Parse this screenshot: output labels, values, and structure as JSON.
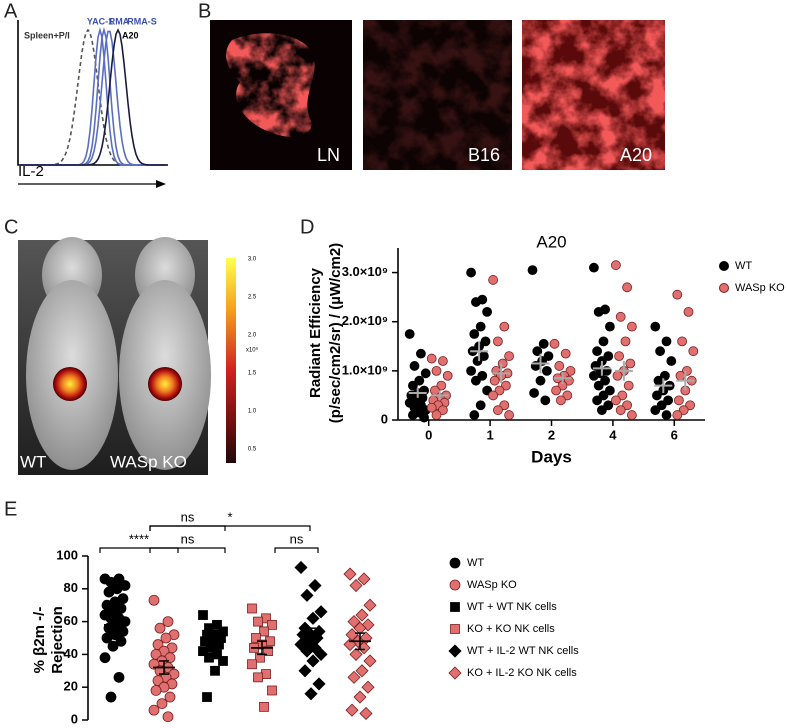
{
  "panel_labels": [
    "A",
    "B",
    "C",
    "D",
    "E"
  ],
  "panel_a": {
    "lines": [
      "Spleen+P/I",
      "YAC-1",
      "RMA",
      "RMA-S",
      "A20"
    ],
    "xlabel": "IL-2"
  },
  "panel_b": {
    "images": [
      "LN",
      "B16",
      "A20"
    ]
  },
  "panel_c": {
    "mice": [
      "WT",
      "WASp KO"
    ],
    "colorbar_ticks": [
      "3.0",
      "2.5",
      "2.0",
      "1.5",
      "1.0",
      "0.5"
    ],
    "colorbar_unit": "x10⁹"
  },
  "chart_data": [
    {
      "type": "scatter",
      "title": "A20",
      "xlabel": "Days",
      "ylabel": [
        "Radiant Efficiency",
        "(p/sec/cm2/sr) / (µW/cm2)"
      ],
      "categories": [
        "0",
        "1",
        "2",
        "4",
        "6"
      ],
      "ylim": [
        0,
        3500000000.0
      ],
      "yticks": [
        0,
        {
          "value": 1000000000.0,
          "label": "1.0×10⁹"
        },
        {
          "value": 2000000000.0,
          "label": "2.0×10⁹"
        },
        {
          "value": 3000000000.0,
          "label": "3.0×10⁹"
        }
      ],
      "series": [
        {
          "name": "WT",
          "color": "#000000",
          "values": [
            [
              1750000000.0,
              1350000000.0,
              1100000000.0,
              950000000.0,
              800000000.0,
              700000000.0,
              600000000.0,
              550000000.0,
              500000000.0,
              450000000.0,
              400000000.0,
              350000000.0,
              300000000.0,
              250000000.0,
              200000000.0,
              150000000.0,
              100000000.0,
              50000000.0
            ],
            [
              3000000000.0,
              2450000000.0,
              2400000000.0,
              2200000000.0,
              1900000000.0,
              1750000000.0,
              1600000000.0,
              1500000000.0,
              1400000000.0,
              1300000000.0,
              1200000000.0,
              1000000000.0,
              900000000.0,
              800000000.0,
              600000000.0,
              300000000.0,
              100000000.0
            ],
            [
              3050000000.0,
              1550000000.0,
              1400000000.0,
              1300000000.0,
              1200000000.0,
              1100000000.0,
              1000000000.0,
              800000000.0,
              550000000.0,
              400000000.0
            ],
            [
              3100000000.0,
              2250000000.0,
              2200000000.0,
              1900000000.0,
              1600000000.0,
              1400000000.0,
              1300000000.0,
              1200000000.0,
              1100000000.0,
              1000000000.0,
              950000000.0,
              900000000.0,
              800000000.0,
              700000000.0,
              600000000.0,
              500000000.0,
              400000000.0,
              300000000.0,
              200000000.0
            ],
            [
              1900000000.0,
              1600000000.0,
              1400000000.0,
              1200000000.0,
              900000000.0,
              800000000.0,
              700000000.0,
              600000000.0,
              500000000.0,
              400000000.0,
              300000000.0,
              200000000.0,
              100000000.0
            ]
          ],
          "means": [
            550000000.0,
            1400000000.0,
            1150000000.0,
            1050000000.0,
            700000000.0
          ],
          "sems": [
            100000000.0,
            200000000.0,
            200000000.0,
            150000000.0,
            150000000.0
          ]
        },
        {
          "name": "WASp KO",
          "color": "#e07070",
          "values": [
            [
              1250000000.0,
              1200000000.0,
              1000000000.0,
              900000000.0,
              700000000.0,
              600000000.0,
              500000000.0,
              450000000.0,
              400000000.0,
              350000000.0,
              300000000.0,
              250000000.0,
              200000000.0,
              100000000.0
            ],
            [
              2850000000.0,
              1900000000.0,
              1600000000.0,
              1300000000.0,
              1150000000.0,
              1000000000.0,
              950000000.0,
              900000000.0,
              800000000.0,
              700000000.0,
              600000000.0,
              500000000.0,
              300000000.0,
              200000000.0,
              100000000.0
            ],
            [
              1550000000.0,
              1350000000.0,
              1100000000.0,
              1000000000.0,
              900000000.0,
              850000000.0,
              800000000.0,
              700000000.0,
              600000000.0,
              500000000.0,
              400000000.0
            ],
            [
              3150000000.0,
              2700000000.0,
              2100000000.0,
              1900000000.0,
              1600000000.0,
              1300000000.0,
              1150000000.0,
              1000000000.0,
              900000000.0,
              700000000.0,
              500000000.0,
              400000000.0,
              300000000.0,
              200000000.0,
              100000000.0
            ],
            [
              2550000000.0,
              2200000000.0,
              1600000000.0,
              1400000000.0,
              1000000000.0,
              900000000.0,
              800000000.0,
              600000000.0,
              400000000.0,
              300000000.0,
              200000000.0,
              100000000.0
            ]
          ],
          "means": [
            500000000.0,
            950000000.0,
            850000000.0,
            1000000000.0,
            800000000.0
          ],
          "sems": [
            100000000.0,
            200000000.0,
            120000000.0,
            200000000.0,
            200000000.0
          ]
        }
      ]
    },
    {
      "type": "dot",
      "ylabel": [
        "% β2m -/-",
        "Rejection"
      ],
      "ylim": [
        0,
        100
      ],
      "yticks": [
        0,
        20,
        40,
        60,
        80,
        100
      ],
      "annotations": [
        "****",
        "ns",
        "ns",
        "ns",
        "*"
      ],
      "series": [
        {
          "name": "WT",
          "color": "#000000",
          "marker": "circle",
          "values": [
            86,
            86,
            84,
            82,
            80,
            78,
            74,
            72,
            70,
            68,
            66,
            64,
            62,
            62,
            60,
            58,
            56,
            54,
            52,
            50,
            48,
            45,
            38,
            26,
            14
          ],
          "mean": 58,
          "sem": 4
        },
        {
          "name": "WASp KO",
          "color": "#e07070",
          "marker": "circle",
          "values": [
            73,
            60,
            56,
            52,
            50,
            46,
            44,
            42,
            40,
            38,
            36,
            34,
            32,
            30,
            28,
            26,
            24,
            22,
            20,
            18,
            14,
            10,
            6,
            2
          ],
          "mean": 32,
          "sem": 4
        },
        {
          "name": "WT + WT NK cells",
          "color": "#000000",
          "marker": "square",
          "values": [
            64,
            58,
            56,
            54,
            52,
            52,
            50,
            48,
            48,
            46,
            44,
            42,
            40,
            38,
            36,
            30,
            14
          ],
          "mean": 48,
          "sem": 3
        },
        {
          "name": "KO + KO NK cells",
          "color": "#e07070",
          "marker": "square",
          "values": [
            68,
            62,
            60,
            58,
            54,
            50,
            48,
            46,
            44,
            42,
            38,
            34,
            28,
            26,
            18,
            8
          ],
          "mean": 44,
          "sem": 4
        },
        {
          "name": "WT + IL-2 WT NK cells",
          "color": "#000000",
          "marker": "diamond",
          "values": [
            93,
            82,
            76,
            66,
            62,
            56,
            54,
            52,
            52,
            50,
            48,
            46,
            44,
            42,
            40,
            36,
            30,
            22,
            16
          ],
          "mean": 52,
          "sem": 4
        },
        {
          "name": "KO + IL-2 KO NK cells",
          "color": "#e07070",
          "marker": "diamond",
          "values": [
            89,
            86,
            82,
            70,
            64,
            60,
            58,
            56,
            52,
            50,
            48,
            46,
            44,
            40,
            36,
            30,
            26,
            20,
            14,
            6,
            4
          ],
          "mean": 48,
          "sem": 5
        }
      ]
    }
  ]
}
